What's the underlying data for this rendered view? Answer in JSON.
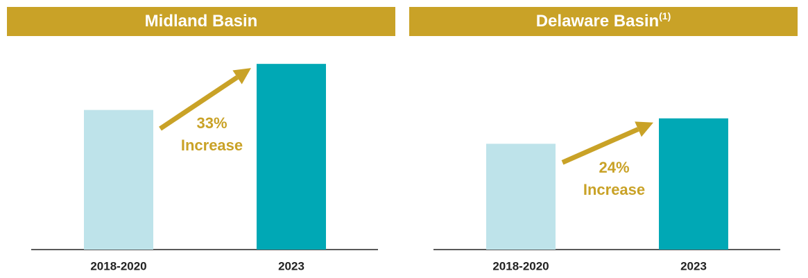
{
  "chart_data": [
    {
      "type": "bar",
      "title": "Midland Basin",
      "categories": [
        "2018-2020",
        "2023"
      ],
      "values": [
        100,
        133
      ],
      "colors": [
        "#bee3ea",
        "#00a8b5"
      ],
      "ylim": [
        0,
        144
      ],
      "annotation": [
        "33%",
        "Increase"
      ]
    },
    {
      "type": "bar",
      "title": "Delaware Basin",
      "title_note": "(1)",
      "categories": [
        "2018-2020",
        "2023"
      ],
      "values": [
        100,
        124
      ],
      "colors": [
        "#bee3ea",
        "#00a8b5"
      ],
      "ylim": [
        0,
        190
      ],
      "annotation": [
        "24%",
        "Increase"
      ]
    }
  ]
}
